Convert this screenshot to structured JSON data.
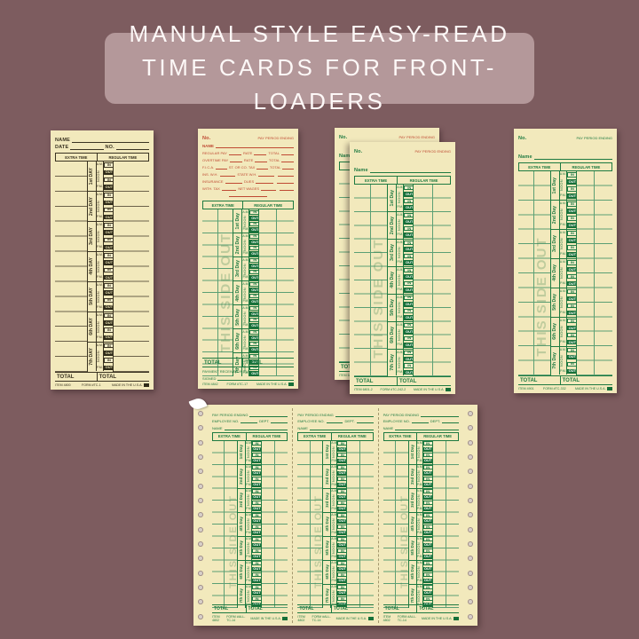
{
  "colors": {
    "background": "#7d5c5f",
    "banner_bg": "#b4989a",
    "banner_text": "#fdf8f7",
    "paper": "#f2e9bc",
    "black_ink": "#3a3321",
    "green_ink": "#1e7a41",
    "red_ink": "#bf4a33"
  },
  "banner": {
    "title": "MANUAL STYLE EASY-READ TIME CARDS FOR FRONT-LOADERS"
  },
  "shared": {
    "extra_time": "EXTRA TIME",
    "regular_time": "REGULAR TIME",
    "total": "TOTAL",
    "noon": "NOON",
    "am": "A.M.",
    "pm": "P.M.",
    "in": "IN",
    "out": "OUT",
    "made_in": "MADE IN THE U.S.A.",
    "this_side_out": "THIS SIDE OUT",
    "pay_period_ending": "PAY PERIOD ENDING"
  },
  "card1": {
    "name_label": "NAME",
    "date_label": "DATE",
    "no_label": "NO.",
    "days": [
      "1st DAY",
      "2nd DAY",
      "3rd DAY",
      "4th DAY",
      "5th DAY",
      "6th DAY",
      "7th DAY"
    ],
    "footer": {
      "item": "ITEM 4800",
      "form": "FORM #TC-1"
    }
  },
  "card2": {
    "no_label": "No.",
    "name_label": "NAME",
    "payroll_rows": [
      {
        "a": "REGULAR PAY",
        "b": "RATE",
        "c": "TOTAL"
      },
      {
        "a": "OVERTIME PAY",
        "b": "RATE",
        "c": "TOTAL"
      },
      {
        "a": "F.I.C.A.",
        "b": "ST. OR CO. TAX",
        "c": "TOTAL"
      },
      {
        "a": "INS. W.H.",
        "b": "STATE W.H.",
        "c": ""
      },
      {
        "a": "INSURANCE",
        "b": "DUES",
        "c": ""
      },
      {
        "a": "WITH. TAX",
        "b": "NET WAGES",
        "c": ""
      }
    ],
    "days": [
      "1st Day",
      "2nd Day",
      "3rd Day",
      "4th Day",
      "5th Day",
      "6th Day",
      "7th Day"
    ],
    "payment_line": "PAYMENT RECEIVED IN FULL",
    "signed_label": "SIGNED",
    "footer": {
      "item": "ITEM 4842",
      "form": "FORM #TC-17"
    }
  },
  "card3": {
    "no_label": "No.",
    "name_label": "Name",
    "days": [
      "1st Day",
      "2nd Day",
      "3rd Day",
      "4th Day",
      "5th Day",
      "6th Day",
      "7th Day"
    ],
    "footer": {
      "item": "ITEM 6801-2",
      "form": "FORM #TC-242-2"
    }
  },
  "card4": {
    "no_label": "No.",
    "name_label": "Name",
    "days": [
      "1st Day",
      "2nd Day",
      "3rd Day",
      "4th Day",
      "5th Day",
      "6th Day",
      "7th Day"
    ],
    "footer": {
      "item": "ITEM 4901",
      "form": "FORM #TC-332"
    }
  },
  "sheet": {
    "panel_header": {
      "pay_period": "PAY PERIOD ENDING",
      "employee_no": "EMPLOYEE NO.",
      "dept": "DEPT.",
      "name": "NAME"
    },
    "days": [
      "1st Day",
      "2nd Day",
      "3rd Day",
      "4th Day",
      "5th Day",
      "6th Day",
      "7th Day"
    ],
    "footer": {
      "item": "ITEM 4802",
      "form": "FORM #ALL-TC-14"
    }
  }
}
